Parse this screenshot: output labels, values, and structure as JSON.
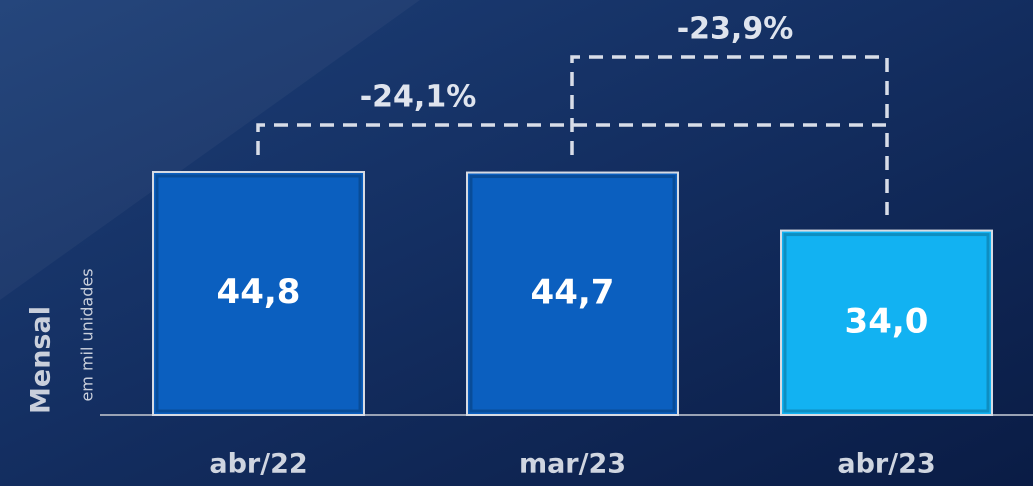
{
  "chart_data": {
    "type": "bar",
    "categories": [
      "abr/22",
      "mar/23",
      "abr/23"
    ],
    "values": [
      44.8,
      44.7,
      34.0
    ],
    "value_labels": [
      "44,8",
      "44,7",
      "34,0"
    ],
    "colors": [
      "#0b5fbf",
      "#0b5fbf",
      "#12b2f2"
    ],
    "y_label": "Mensal",
    "y_sublabel": "em mil unidades",
    "annotations": [
      "-24,1%",
      "-23,9%"
    ]
  }
}
